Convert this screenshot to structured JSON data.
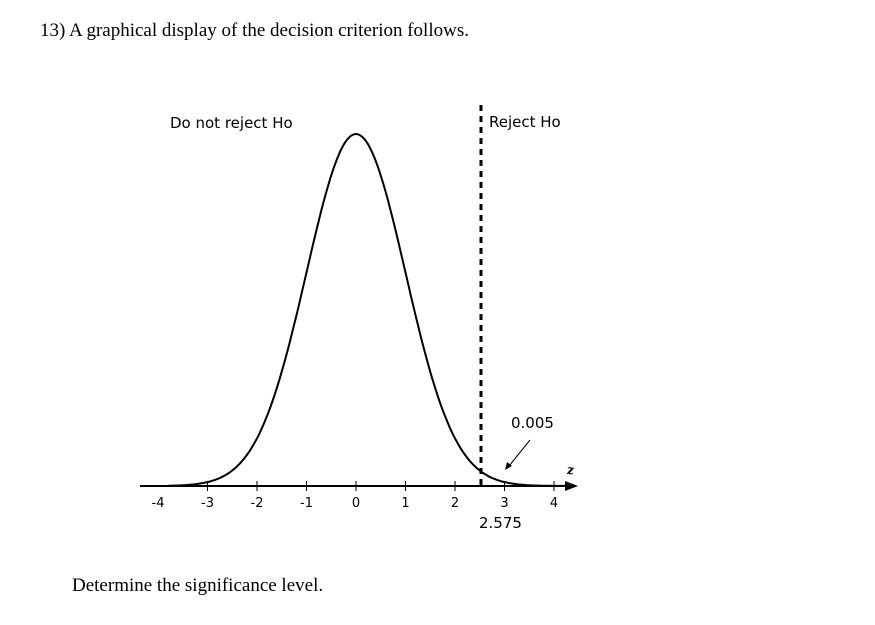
{
  "question": {
    "text": "13) A graphical display of the decision criterion follows."
  },
  "figure": {
    "left_region_label": "Do not reject Ho",
    "right_region_label": "Reject Ho",
    "tail_area_label": "0.005",
    "critical_value_label": "2.575",
    "axis_variable_label": "z",
    "x_ticks": [
      "-4",
      "-3",
      "-2",
      "-1",
      "0",
      "1",
      "2",
      "3",
      "4"
    ],
    "critical_value": 2.575,
    "tail_area": 0.005,
    "x_range": [
      -4,
      4
    ]
  },
  "instruction": {
    "text": "Determine the significance level."
  }
}
